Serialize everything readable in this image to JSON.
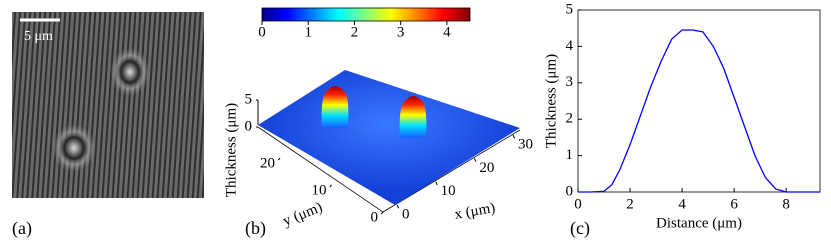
{
  "chart_data": [
    {
      "type": "image",
      "panel_label": "(a)",
      "scale_bar": "5 μm"
    },
    {
      "type": "surface",
      "panel_label": "(b)",
      "zlabel": "Thickness (μm)",
      "xlabel": "x (μm)",
      "ylabel": "y (μm)",
      "clim": [
        0,
        4.5
      ],
      "colorbar_ticks": [
        0,
        1,
        2,
        3,
        4
      ],
      "xlim": [
        0,
        30
      ],
      "xticks": [
        0,
        10,
        20,
        30
      ],
      "ylim": [
        0,
        20
      ],
      "yticks": [
        0,
        10,
        20
      ],
      "zlim": [
        0,
        5
      ],
      "zticks": [
        0,
        5
      ]
    },
    {
      "type": "line",
      "panel_label": "(c)",
      "xlabel": "Distance (μm)",
      "ylabel": "Thickness (μm)",
      "xlim": [
        0,
        9.3
      ],
      "ylim": [
        0,
        5
      ],
      "xticks": [
        0,
        2,
        4,
        6,
        8
      ],
      "yticks": [
        0,
        1,
        2,
        3,
        4,
        5
      ],
      "series": [
        {
          "color": "#0000ff",
          "x": [
            0,
            0.5,
            1,
            1.3,
            1.6,
            2,
            2.4,
            2.8,
            3.2,
            3.6,
            4,
            4.4,
            4.8,
            5.2,
            5.6,
            6,
            6.4,
            6.8,
            7.2,
            7.6,
            8,
            8.5,
            9,
            9.3
          ],
          "values": [
            0,
            0,
            0.02,
            0.2,
            0.6,
            1.3,
            2.1,
            2.9,
            3.6,
            4.2,
            4.45,
            4.45,
            4.4,
            4.0,
            3.4,
            2.6,
            1.8,
            1.0,
            0.4,
            0.08,
            0,
            0,
            0,
            0
          ]
        }
      ]
    }
  ]
}
